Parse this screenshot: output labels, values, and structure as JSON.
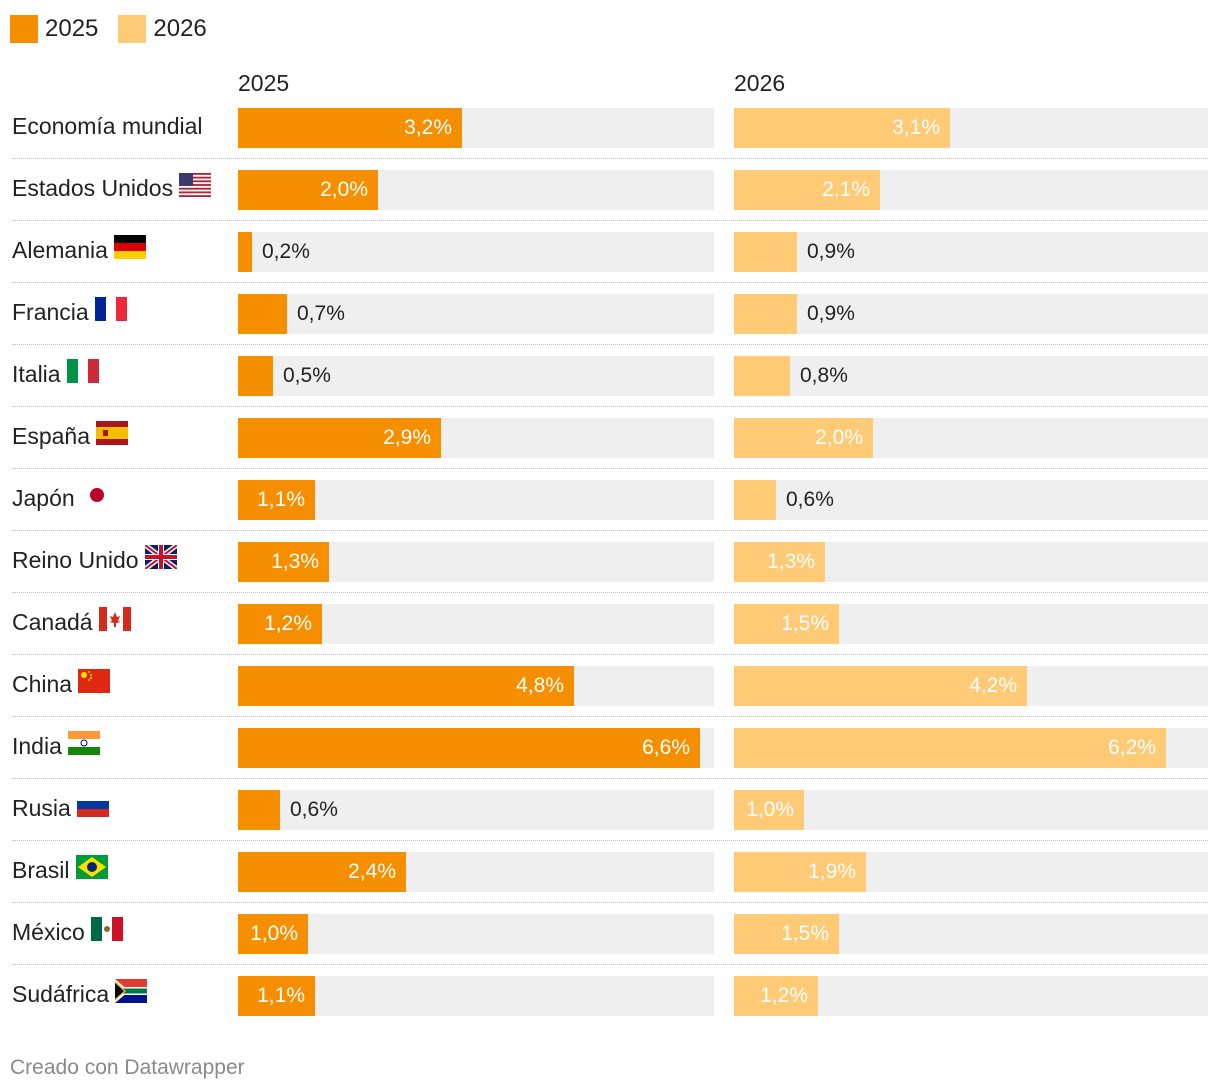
{
  "legend": {
    "items": [
      {
        "label": "2025",
        "color": "#f68f00"
      },
      {
        "label": "2026",
        "color": "#ffca76"
      }
    ]
  },
  "chart_data": {
    "type": "bar",
    "title": "",
    "xlabel": "",
    "ylabel": "",
    "xlim": [
      0,
      6.8
    ],
    "series": [
      {
        "name": "2025",
        "color": "#f68f00",
        "values": [
          3.2,
          2.0,
          0.2,
          0.7,
          0.5,
          2.9,
          1.1,
          1.3,
          1.2,
          4.8,
          6.6,
          0.6,
          2.4,
          1.0,
          1.1
        ],
        "labels": [
          "3,2%",
          "2,0%",
          "0,2%",
          "0,7%",
          "0,5%",
          "2,9%",
          "1,1%",
          "1,3%",
          "1,2%",
          "4,8%",
          "6,6%",
          "0,6%",
          "2,4%",
          "1,0%",
          "1,1%"
        ]
      },
      {
        "name": "2026",
        "color": "#ffca76",
        "values": [
          3.1,
          2.1,
          0.9,
          0.9,
          0.8,
          2.0,
          0.6,
          1.3,
          1.5,
          4.2,
          6.2,
          1.0,
          1.9,
          1.5,
          1.2
        ],
        "labels": [
          "3,1%",
          "2,1%",
          "0,9%",
          "0,9%",
          "0,8%",
          "2,0%",
          "0,6%",
          "1,3%",
          "1,5%",
          "4,2%",
          "6,2%",
          "1,0%",
          "1,9%",
          "1,5%",
          "1,2%"
        ]
      }
    ],
    "categories": [
      "Economía mundial",
      "Estados Unidos",
      "Alemania",
      "Francia",
      "Italia",
      "España",
      "Japón",
      "Reino Unido",
      "Canadá",
      "China",
      "India",
      "Rusia",
      "Brasil",
      "México",
      "Sudáfrica"
    ],
    "flags": [
      "",
      "us-flag-icon",
      "de-flag-icon",
      "fr-flag-icon",
      "it-flag-icon",
      "es-flag-icon",
      "jp-flag-icon",
      "gb-flag-icon",
      "ca-flag-icon",
      "cn-flag-icon",
      "in-flag-icon",
      "ru-flag-icon",
      "br-flag-icon",
      "mx-flag-icon",
      "za-flag-icon"
    ]
  },
  "track_color": "#efefef",
  "footer": {
    "credit": "Creado con Datawrapper"
  }
}
